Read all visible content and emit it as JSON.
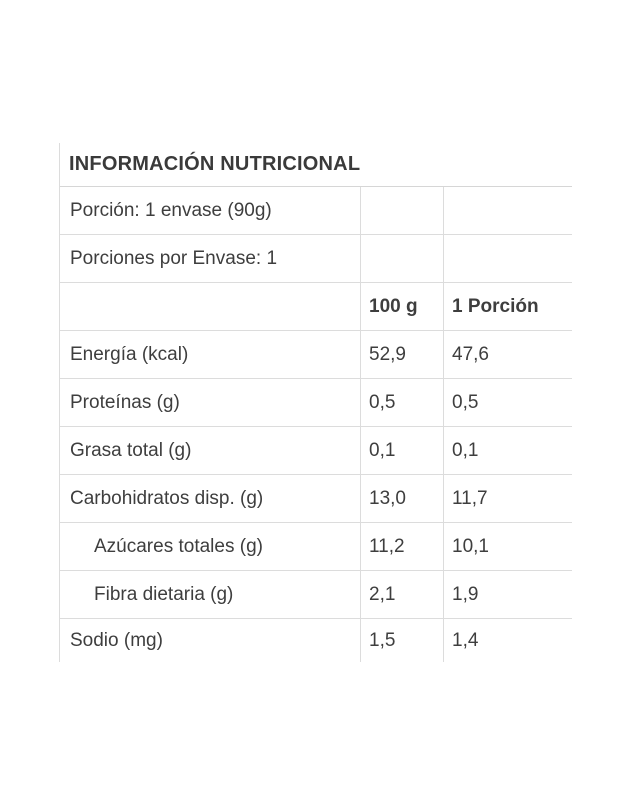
{
  "table": {
    "title": "INFORMACIÓN NUTRICIONAL",
    "info_rows": [
      {
        "label": "Porción: 1 envase (90g)"
      },
      {
        "label": "Porciones por Envase: 1"
      }
    ],
    "column_headers": {
      "per_100g": "100 g",
      "per_portion": "1 Porción"
    },
    "rows": [
      {
        "label": "Energía (kcal)",
        "per_100g": "52,9",
        "per_portion": "47,6"
      },
      {
        "label": "Proteínas (g)",
        "per_100g": "0,5",
        "per_portion": "0,5"
      },
      {
        "label": "Grasa total (g)",
        "per_100g": "0,1",
        "per_portion": "0,1"
      },
      {
        "label": "Carbohidratos disp. (g)",
        "per_100g": "13,0",
        "per_portion": "11,7"
      },
      {
        "label": "Azúcares totales (g)",
        "per_100g": "11,2",
        "per_portion": "10,1"
      },
      {
        "label": "Fibra dietaria (g)",
        "per_100g": "2,1",
        "per_portion": "1,9"
      },
      {
        "label": "Sodio (mg)",
        "per_100g": "1,5",
        "per_portion": "1,4"
      }
    ],
    "colors": {
      "text": "#3e3e3e",
      "border": "#dcdcdc",
      "background": "#ffffff"
    }
  }
}
